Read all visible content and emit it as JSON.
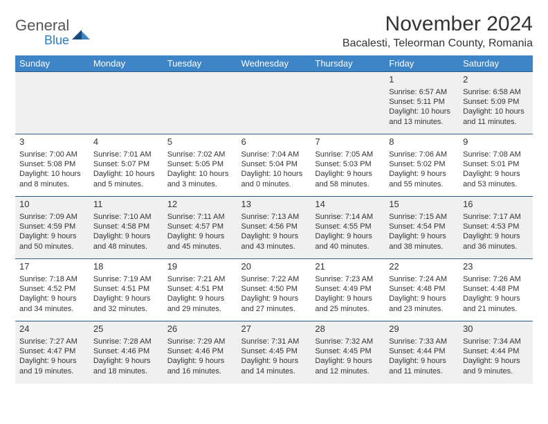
{
  "logo": {
    "text_general": "General",
    "text_blue": "Blue"
  },
  "header": {
    "month_title": "November 2024",
    "location": "Bacalesti, Teleorman County, Romania"
  },
  "colors": {
    "header_bg": "#3d85c6",
    "header_text": "#ffffff",
    "row_border": "#2a5a8a",
    "row_alt_bg": "#f0f0f0",
    "row_bg": "#ffffff",
    "text": "#333333",
    "logo_blue": "#2a7cc4",
    "logo_dark": "#1a4a7a"
  },
  "day_headers": [
    "Sunday",
    "Monday",
    "Tuesday",
    "Wednesday",
    "Thursday",
    "Friday",
    "Saturday"
  ],
  "weeks": [
    [
      {
        "day": "",
        "sunrise": "",
        "sunset": "",
        "daylight1": "",
        "daylight2": ""
      },
      {
        "day": "",
        "sunrise": "",
        "sunset": "",
        "daylight1": "",
        "daylight2": ""
      },
      {
        "day": "",
        "sunrise": "",
        "sunset": "",
        "daylight1": "",
        "daylight2": ""
      },
      {
        "day": "",
        "sunrise": "",
        "sunset": "",
        "daylight1": "",
        "daylight2": ""
      },
      {
        "day": "",
        "sunrise": "",
        "sunset": "",
        "daylight1": "",
        "daylight2": ""
      },
      {
        "day": "1",
        "sunrise": "Sunrise: 6:57 AM",
        "sunset": "Sunset: 5:11 PM",
        "daylight1": "Daylight: 10 hours",
        "daylight2": "and 13 minutes."
      },
      {
        "day": "2",
        "sunrise": "Sunrise: 6:58 AM",
        "sunset": "Sunset: 5:09 PM",
        "daylight1": "Daylight: 10 hours",
        "daylight2": "and 11 minutes."
      }
    ],
    [
      {
        "day": "3",
        "sunrise": "Sunrise: 7:00 AM",
        "sunset": "Sunset: 5:08 PM",
        "daylight1": "Daylight: 10 hours",
        "daylight2": "and 8 minutes."
      },
      {
        "day": "4",
        "sunrise": "Sunrise: 7:01 AM",
        "sunset": "Sunset: 5:07 PM",
        "daylight1": "Daylight: 10 hours",
        "daylight2": "and 5 minutes."
      },
      {
        "day": "5",
        "sunrise": "Sunrise: 7:02 AM",
        "sunset": "Sunset: 5:05 PM",
        "daylight1": "Daylight: 10 hours",
        "daylight2": "and 3 minutes."
      },
      {
        "day": "6",
        "sunrise": "Sunrise: 7:04 AM",
        "sunset": "Sunset: 5:04 PM",
        "daylight1": "Daylight: 10 hours",
        "daylight2": "and 0 minutes."
      },
      {
        "day": "7",
        "sunrise": "Sunrise: 7:05 AM",
        "sunset": "Sunset: 5:03 PM",
        "daylight1": "Daylight: 9 hours",
        "daylight2": "and 58 minutes."
      },
      {
        "day": "8",
        "sunrise": "Sunrise: 7:06 AM",
        "sunset": "Sunset: 5:02 PM",
        "daylight1": "Daylight: 9 hours",
        "daylight2": "and 55 minutes."
      },
      {
        "day": "9",
        "sunrise": "Sunrise: 7:08 AM",
        "sunset": "Sunset: 5:01 PM",
        "daylight1": "Daylight: 9 hours",
        "daylight2": "and 53 minutes."
      }
    ],
    [
      {
        "day": "10",
        "sunrise": "Sunrise: 7:09 AM",
        "sunset": "Sunset: 4:59 PM",
        "daylight1": "Daylight: 9 hours",
        "daylight2": "and 50 minutes."
      },
      {
        "day": "11",
        "sunrise": "Sunrise: 7:10 AM",
        "sunset": "Sunset: 4:58 PM",
        "daylight1": "Daylight: 9 hours",
        "daylight2": "and 48 minutes."
      },
      {
        "day": "12",
        "sunrise": "Sunrise: 7:11 AM",
        "sunset": "Sunset: 4:57 PM",
        "daylight1": "Daylight: 9 hours",
        "daylight2": "and 45 minutes."
      },
      {
        "day": "13",
        "sunrise": "Sunrise: 7:13 AM",
        "sunset": "Sunset: 4:56 PM",
        "daylight1": "Daylight: 9 hours",
        "daylight2": "and 43 minutes."
      },
      {
        "day": "14",
        "sunrise": "Sunrise: 7:14 AM",
        "sunset": "Sunset: 4:55 PM",
        "daylight1": "Daylight: 9 hours",
        "daylight2": "and 40 minutes."
      },
      {
        "day": "15",
        "sunrise": "Sunrise: 7:15 AM",
        "sunset": "Sunset: 4:54 PM",
        "daylight1": "Daylight: 9 hours",
        "daylight2": "and 38 minutes."
      },
      {
        "day": "16",
        "sunrise": "Sunrise: 7:17 AM",
        "sunset": "Sunset: 4:53 PM",
        "daylight1": "Daylight: 9 hours",
        "daylight2": "and 36 minutes."
      }
    ],
    [
      {
        "day": "17",
        "sunrise": "Sunrise: 7:18 AM",
        "sunset": "Sunset: 4:52 PM",
        "daylight1": "Daylight: 9 hours",
        "daylight2": "and 34 minutes."
      },
      {
        "day": "18",
        "sunrise": "Sunrise: 7:19 AM",
        "sunset": "Sunset: 4:51 PM",
        "daylight1": "Daylight: 9 hours",
        "daylight2": "and 32 minutes."
      },
      {
        "day": "19",
        "sunrise": "Sunrise: 7:21 AM",
        "sunset": "Sunset: 4:51 PM",
        "daylight1": "Daylight: 9 hours",
        "daylight2": "and 29 minutes."
      },
      {
        "day": "20",
        "sunrise": "Sunrise: 7:22 AM",
        "sunset": "Sunset: 4:50 PM",
        "daylight1": "Daylight: 9 hours",
        "daylight2": "and 27 minutes."
      },
      {
        "day": "21",
        "sunrise": "Sunrise: 7:23 AM",
        "sunset": "Sunset: 4:49 PM",
        "daylight1": "Daylight: 9 hours",
        "daylight2": "and 25 minutes."
      },
      {
        "day": "22",
        "sunrise": "Sunrise: 7:24 AM",
        "sunset": "Sunset: 4:48 PM",
        "daylight1": "Daylight: 9 hours",
        "daylight2": "and 23 minutes."
      },
      {
        "day": "23",
        "sunrise": "Sunrise: 7:26 AM",
        "sunset": "Sunset: 4:48 PM",
        "daylight1": "Daylight: 9 hours",
        "daylight2": "and 21 minutes."
      }
    ],
    [
      {
        "day": "24",
        "sunrise": "Sunrise: 7:27 AM",
        "sunset": "Sunset: 4:47 PM",
        "daylight1": "Daylight: 9 hours",
        "daylight2": "and 19 minutes."
      },
      {
        "day": "25",
        "sunrise": "Sunrise: 7:28 AM",
        "sunset": "Sunset: 4:46 PM",
        "daylight1": "Daylight: 9 hours",
        "daylight2": "and 18 minutes."
      },
      {
        "day": "26",
        "sunrise": "Sunrise: 7:29 AM",
        "sunset": "Sunset: 4:46 PM",
        "daylight1": "Daylight: 9 hours",
        "daylight2": "and 16 minutes."
      },
      {
        "day": "27",
        "sunrise": "Sunrise: 7:31 AM",
        "sunset": "Sunset: 4:45 PM",
        "daylight1": "Daylight: 9 hours",
        "daylight2": "and 14 minutes."
      },
      {
        "day": "28",
        "sunrise": "Sunrise: 7:32 AM",
        "sunset": "Sunset: 4:45 PM",
        "daylight1": "Daylight: 9 hours",
        "daylight2": "and 12 minutes."
      },
      {
        "day": "29",
        "sunrise": "Sunrise: 7:33 AM",
        "sunset": "Sunset: 4:44 PM",
        "daylight1": "Daylight: 9 hours",
        "daylight2": "and 11 minutes."
      },
      {
        "day": "30",
        "sunrise": "Sunrise: 7:34 AM",
        "sunset": "Sunset: 4:44 PM",
        "daylight1": "Daylight: 9 hours",
        "daylight2": "and 9 minutes."
      }
    ]
  ]
}
